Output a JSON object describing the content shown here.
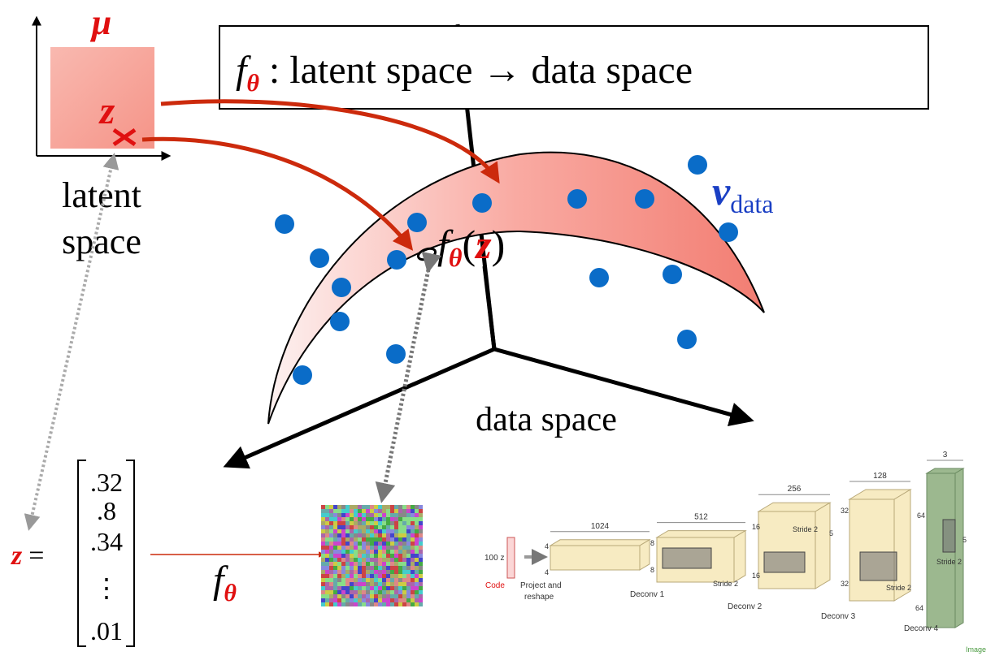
{
  "latent": {
    "measure": "μ",
    "point": "z",
    "label": [
      "latent",
      "space"
    ]
  },
  "mapping_box": {
    "f": "f",
    "sub": "θ",
    "text": " : latent space → data space"
  },
  "manifold_point": {
    "f": "f",
    "sub": "θ",
    "open": "(",
    "z": "z",
    "close": ")"
  },
  "target": {
    "measure": "ν",
    "sub": "data"
  },
  "data_space_label": "data space",
  "vector": {
    "lhs": "z",
    "eq": "=",
    "entries": [
      ".32",
      ".8",
      ".34",
      "⋮",
      ".01"
    ]
  },
  "generator": {
    "f": "f",
    "sub": "θ"
  },
  "dcgan": {
    "input": "100 z",
    "code": "Code",
    "project": [
      "Project and",
      "reshape"
    ],
    "widths": [
      "1024",
      "512",
      "256",
      "128",
      "3"
    ],
    "layers": [
      "Deconv 1",
      "Deconv 2",
      "Deconv 3",
      "Deconv 4"
    ],
    "stride": "Stride 2",
    "image": "Image",
    "dims": [
      "4",
      "4",
      "8",
      "8",
      "16",
      "16",
      "32",
      "32",
      "64",
      "64",
      "5",
      "5"
    ]
  }
}
